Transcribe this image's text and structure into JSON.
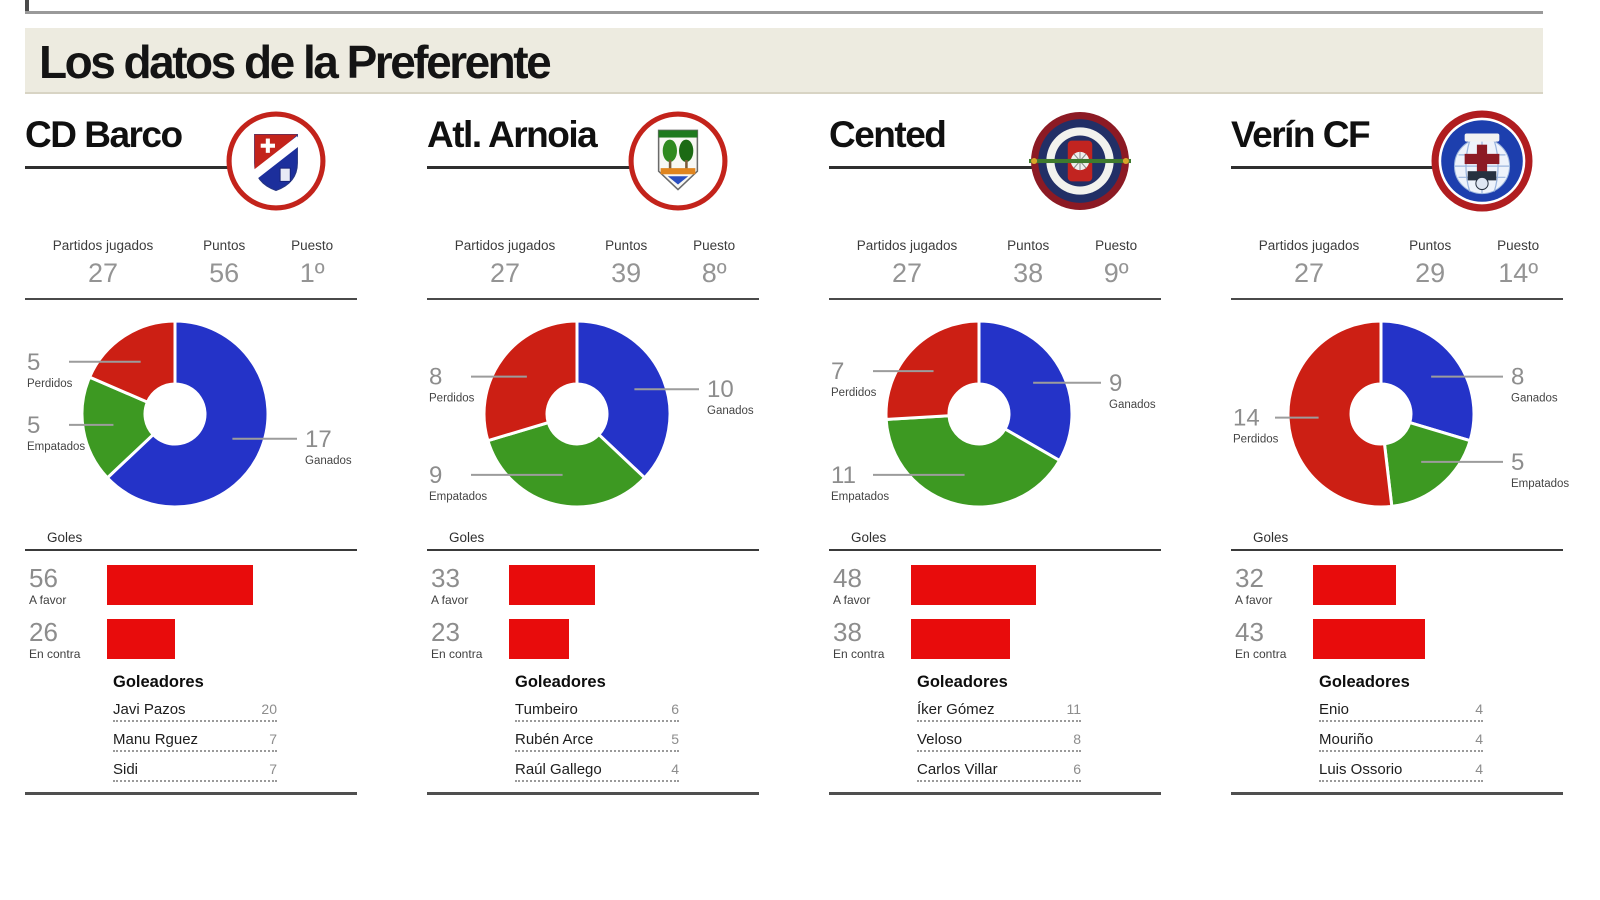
{
  "title": "Los datos de la Preferente",
  "stats_labels": {
    "played": "Partidos jugados",
    "points": "Puntos",
    "position": "Puesto"
  },
  "donut_labels": {
    "won": "Ganados",
    "drawn": "Empatados",
    "lost": "Perdidos"
  },
  "goals_section": {
    "title": "Goles",
    "for": "A favor",
    "against": "En contra"
  },
  "scorers_title": "Goleadores",
  "colors": {
    "won": "#2433c8",
    "drawn": "#3d9922",
    "lost": "#cc1f14",
    "bar": "#e80c0c"
  },
  "teams": [
    {
      "name": "CD Barco",
      "crest": "barco",
      "played": 27,
      "points": 56,
      "position": "1º",
      "won": 17,
      "drawn": 5,
      "lost": 5,
      "goals_for": 56,
      "goals_against": 26,
      "scorers": [
        {
          "name": "Javi Pazos",
          "goals": 20
        },
        {
          "name": "Manu Rguez",
          "goals": 7
        },
        {
          "name": "Sidi",
          "goals": 7
        }
      ]
    },
    {
      "name": "Atl. Arnoia",
      "crest": "arnoia",
      "played": 27,
      "points": 39,
      "position": "8º",
      "won": 10,
      "drawn": 9,
      "lost": 8,
      "goals_for": 33,
      "goals_against": 23,
      "scorers": [
        {
          "name": "Tumbeiro",
          "goals": 6
        },
        {
          "name": "Rubén Arce",
          "goals": 5
        },
        {
          "name": "Raúl Gallego",
          "goals": 4
        }
      ]
    },
    {
      "name": "Cented",
      "crest": "cented",
      "played": 27,
      "points": 38,
      "position": "9º",
      "won": 9,
      "drawn": 11,
      "lost": 7,
      "goals_for": 48,
      "goals_against": 38,
      "scorers": [
        {
          "name": "Íker Gómez",
          "goals": 11
        },
        {
          "name": "Veloso",
          "goals": 8
        },
        {
          "name": "Carlos Villar",
          "goals": 6
        }
      ]
    },
    {
      "name": "Verín CF",
      "crest": "verin",
      "played": 27,
      "points": 29,
      "position": "14º",
      "won": 8,
      "drawn": 5,
      "lost": 14,
      "goals_for": 32,
      "goals_against": 43,
      "scorers": [
        {
          "name": "Enio",
          "goals": 4
        },
        {
          "name": "Mouriño",
          "goals": 4
        },
        {
          "name": "Luis Ossorio",
          "goals": 4
        }
      ]
    }
  ],
  "chart_data": [
    {
      "type": "pie",
      "title": "CD Barco resultados",
      "labels": [
        "Ganados",
        "Empatados",
        "Perdidos"
      ],
      "values": [
        17,
        5,
        5
      ]
    },
    {
      "type": "bar",
      "title": "CD Barco goles",
      "categories": [
        "A favor",
        "En contra"
      ],
      "values": [
        56,
        26
      ]
    },
    {
      "type": "pie",
      "title": "Atl. Arnoia resultados",
      "labels": [
        "Ganados",
        "Empatados",
        "Perdidos"
      ],
      "values": [
        10,
        9,
        8
      ]
    },
    {
      "type": "bar",
      "title": "Atl. Arnoia goles",
      "categories": [
        "A favor",
        "En contra"
      ],
      "values": [
        33,
        23
      ]
    },
    {
      "type": "pie",
      "title": "Cented resultados",
      "labels": [
        "Ganados",
        "Empatados",
        "Perdidos"
      ],
      "values": [
        9,
        11,
        7
      ]
    },
    {
      "type": "bar",
      "title": "Cented goles",
      "categories": [
        "A favor",
        "En contra"
      ],
      "values": [
        48,
        38
      ]
    },
    {
      "type": "pie",
      "title": "Verín CF resultados",
      "labels": [
        "Ganados",
        "Empatados",
        "Perdidos"
      ],
      "values": [
        8,
        5,
        14
      ]
    },
    {
      "type": "bar",
      "title": "Verín CF goles",
      "categories": [
        "A favor",
        "En contra"
      ],
      "values": [
        32,
        43
      ]
    }
  ]
}
